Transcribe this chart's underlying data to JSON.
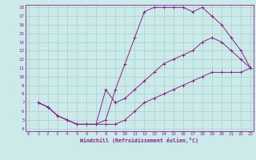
{
  "xlabel": "Windchill (Refroidissement éolien,°C)",
  "bg_color": "#cceaea",
  "grid_color": "#aacccc",
  "line_color": "#882288",
  "xlim": [
    0,
    23
  ],
  "ylim": [
    4,
    18
  ],
  "xticks": [
    0,
    1,
    2,
    3,
    4,
    5,
    6,
    7,
    8,
    9,
    10,
    11,
    12,
    13,
    14,
    15,
    16,
    17,
    18,
    19,
    20,
    21,
    22,
    23
  ],
  "yticks": [
    4,
    5,
    6,
    7,
    8,
    9,
    10,
    11,
    12,
    13,
    14,
    15,
    16,
    17,
    18
  ],
  "curve1_x": [
    1,
    2,
    3,
    4,
    5,
    6,
    7,
    8,
    9,
    10,
    11,
    12,
    13,
    14,
    15,
    16,
    17,
    18,
    19,
    20,
    21,
    22,
    23
  ],
  "curve1_y": [
    7,
    6.5,
    5.5,
    5,
    4.5,
    4.5,
    4.5,
    5,
    8.5,
    11.5,
    14.5,
    17.5,
    18,
    18,
    18,
    18,
    17.5,
    18,
    17,
    16,
    14.5,
    13,
    11
  ],
  "curve2_x": [
    1,
    2,
    3,
    4,
    5,
    6,
    7,
    8,
    9,
    10,
    11,
    12,
    13,
    14,
    15,
    16,
    17,
    18,
    19,
    20,
    21,
    22,
    23
  ],
  "curve2_y": [
    7,
    6.5,
    5.5,
    5,
    4.5,
    4.5,
    4.5,
    8.5,
    7,
    7.5,
    8.5,
    9.5,
    10.5,
    11.5,
    12,
    12.5,
    13,
    14,
    14.5,
    14,
    13,
    12,
    11
  ],
  "curve3_x": [
    1,
    2,
    3,
    4,
    5,
    6,
    7,
    8,
    9,
    10,
    11,
    12,
    13,
    14,
    15,
    16,
    17,
    18,
    19,
    20,
    21,
    22,
    23
  ],
  "curve3_y": [
    7,
    6.5,
    5.5,
    5,
    4.5,
    4.5,
    4.5,
    4.5,
    4.5,
    5,
    6,
    7,
    7.5,
    8,
    8.5,
    9,
    9.5,
    10,
    10.5,
    10.5,
    10.5,
    10.5,
    11
  ]
}
